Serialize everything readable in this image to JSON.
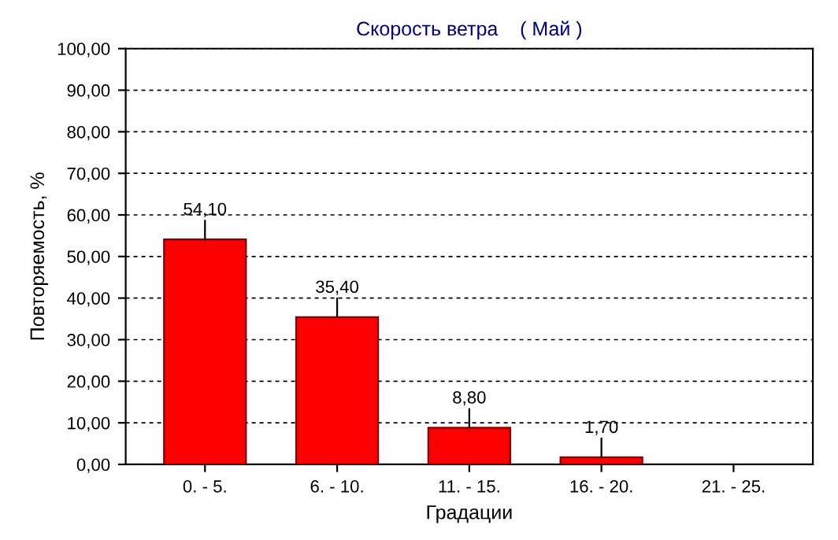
{
  "chart_data": {
    "type": "bar",
    "title": "Скорость ветра    ( Май )",
    "xlabel": "Градации",
    "ylabel": "Повторяемость, %",
    "categories": [
      "0. - 5.",
      "6. - 10.",
      "11. - 15.",
      "16. - 20.",
      "21. - 25."
    ],
    "values": [
      54.1,
      35.4,
      8.8,
      1.7,
      null
    ],
    "value_labels": [
      "54,10",
      "35,40",
      "8,80",
      "1,70",
      null
    ],
    "color": "#ff0000",
    "ylim": [
      0,
      100
    ],
    "yticks": [
      {
        "value": 0,
        "label": "0,00"
      },
      {
        "value": 10,
        "label": "10,00"
      },
      {
        "value": 20,
        "label": "20,00"
      },
      {
        "value": 30,
        "label": "30,00"
      },
      {
        "value": 40,
        "label": "40,00"
      },
      {
        "value": 50,
        "label": "50,00"
      },
      {
        "value": 60,
        "label": "60,00"
      },
      {
        "value": 70,
        "label": "70,00"
      },
      {
        "value": 80,
        "label": "80,00"
      },
      {
        "value": 90,
        "label": "90,00"
      },
      {
        "value": 100,
        "label": "100,00"
      }
    ],
    "grid": "y"
  }
}
